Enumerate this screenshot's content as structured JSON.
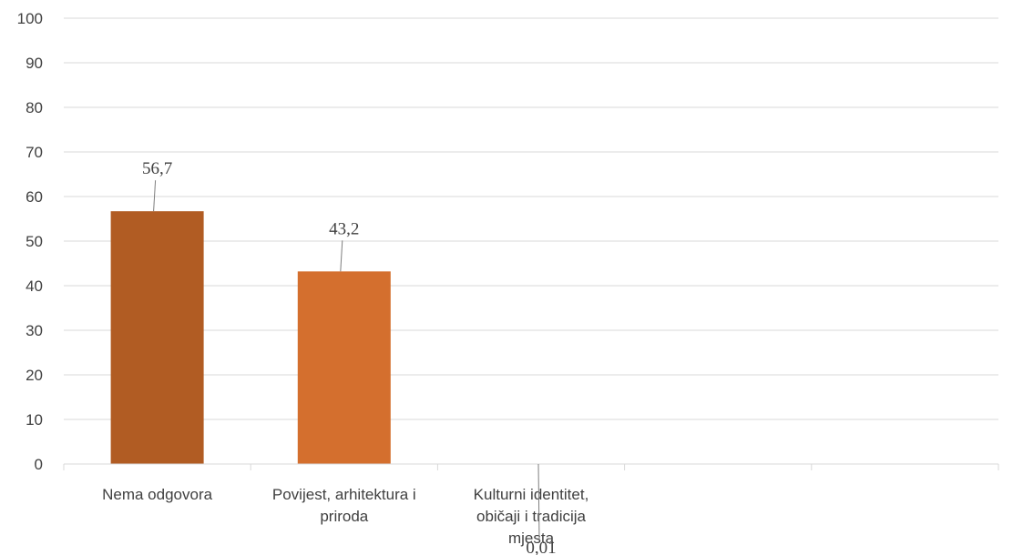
{
  "chart_data": {
    "type": "bar",
    "categories": [
      "Nema odgovora",
      "Povijest, arhitektura i priroda",
      "Kulturni identitet, običaji i tradicija mjesta",
      "",
      ""
    ],
    "category_lines": [
      [
        "Nema odgovora"
      ],
      [
        "Povijest, arhitektura i",
        "priroda"
      ],
      [
        "Kulturni identitet,",
        "običaji i tradicija",
        "mjesta"
      ],
      [],
      []
    ],
    "values": [
      56.7,
      43.2,
      0.01,
      null,
      null
    ],
    "data_labels": [
      "56,7",
      "43,2",
      "0,01",
      "",
      ""
    ],
    "bar_colors": [
      "#b15c23",
      "#d46f2e",
      "#d46f2e",
      "",
      ""
    ],
    "ylim": [
      0,
      100
    ],
    "yticks": [
      0,
      10,
      20,
      30,
      40,
      50,
      60,
      70,
      80,
      90,
      100
    ],
    "grid": true,
    "title": "",
    "xlabel": "",
    "ylabel": ""
  }
}
